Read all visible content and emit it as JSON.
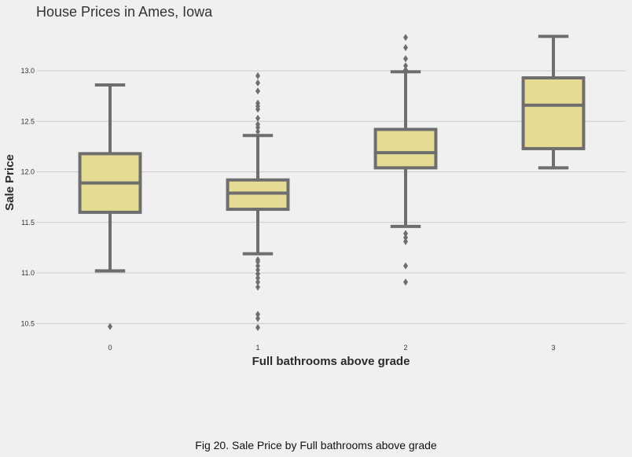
{
  "chart_data": {
    "type": "box",
    "title": "House Prices in Ames, Iowa",
    "xlabel": "Full bathrooms above grade",
    "ylabel": "Sale Price",
    "categories": [
      "0",
      "1",
      "2",
      "3"
    ],
    "ylim": [
      10.4,
      13.4
    ],
    "yticks": [
      "10.5",
      "11.0",
      "11.5",
      "12.0",
      "12.5",
      "13.0"
    ],
    "grid": "horizontal",
    "colors": {
      "box_fill": "#e5dc93",
      "line": "#6e6e6e",
      "grid": "#cbcbcb",
      "background": "#f0f0f0"
    },
    "boxes": [
      {
        "category": "0",
        "whisker_low": 11.02,
        "q1": 11.6,
        "median": 11.89,
        "q3": 12.18,
        "whisker_high": 12.86,
        "outliers": [
          10.47
        ]
      },
      {
        "category": "1",
        "whisker_low": 11.19,
        "q1": 11.63,
        "median": 11.79,
        "q3": 11.92,
        "whisker_high": 12.36,
        "outliers": [
          10.46,
          10.55,
          10.59,
          10.86,
          10.91,
          10.95,
          10.99,
          11.03,
          11.07,
          11.11,
          11.13,
          12.4,
          12.44,
          12.47,
          12.53,
          12.62,
          12.65,
          12.68,
          12.8,
          12.88,
          12.95
        ]
      },
      {
        "category": "2",
        "whisker_low": 11.46,
        "q1": 12.04,
        "median": 12.19,
        "q3": 12.42,
        "whisker_high": 12.99,
        "outliers": [
          10.91,
          11.07,
          11.31,
          11.35,
          11.39,
          13.01,
          13.05,
          13.12,
          13.23,
          13.33
        ]
      },
      {
        "category": "3",
        "whisker_low": 12.04,
        "q1": 12.23,
        "median": 12.66,
        "q3": 12.93,
        "whisker_high": 13.34,
        "outliers": []
      }
    ]
  },
  "caption": "Fig 20. Sale Price by Full bathrooms above grade"
}
